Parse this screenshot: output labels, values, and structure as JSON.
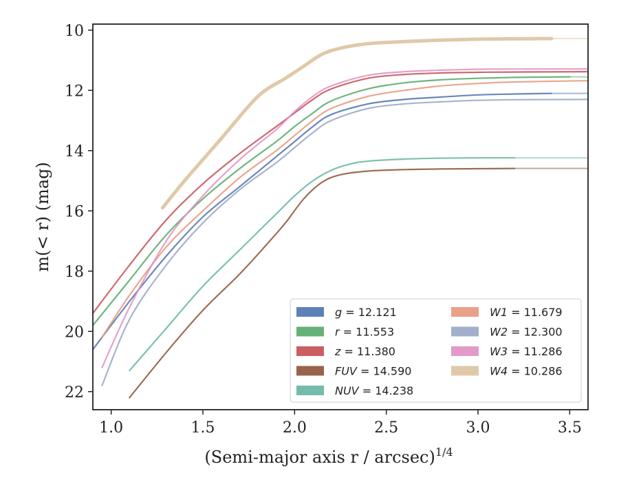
{
  "chart_data": {
    "type": "line",
    "xlabel": "(Semi-major axis r / arcsec)",
    "xlabel_exponent": "1/4",
    "ylabel": "m(< r) (mag)",
    "xlim": [
      0.9,
      3.6
    ],
    "ylim": [
      22.6,
      9.8
    ],
    "y_inverted": true,
    "xticks": [
      1.0,
      1.5,
      2.0,
      2.5,
      3.0,
      3.5
    ],
    "xtick_labels": [
      "1.0",
      "1.5",
      "2.0",
      "2.5",
      "3.0",
      "3.5"
    ],
    "yticks": [
      10,
      12,
      14,
      16,
      18,
      20,
      22
    ],
    "ytick_labels": [
      "10",
      "12",
      "14",
      "16",
      "18",
      "20",
      "22"
    ],
    "grid": false,
    "legend_position": "lower-right",
    "series": [
      {
        "name": "g",
        "label_value": "12.121",
        "color": "#4c72b0",
        "x": [
          0.9,
          1.1,
          1.3,
          1.5,
          1.7,
          1.9,
          2.0,
          2.1,
          2.2,
          2.4,
          2.6,
          2.8,
          3.0,
          3.2,
          3.4
        ],
        "y": [
          20.6,
          19.0,
          17.5,
          16.2,
          15.2,
          14.2,
          13.7,
          13.2,
          12.8,
          12.45,
          12.3,
          12.22,
          12.15,
          12.12,
          12.1
        ],
        "x_ext": [
          3.4,
          3.6
        ],
        "y_ext": [
          12.1,
          12.1
        ]
      },
      {
        "name": "r",
        "label_value": "11.553",
        "color": "#55a868",
        "x": [
          0.9,
          1.1,
          1.3,
          1.5,
          1.7,
          1.9,
          2.0,
          2.1,
          2.2,
          2.4,
          2.6,
          2.8,
          3.0,
          3.2,
          3.5
        ],
        "y": [
          19.8,
          18.3,
          16.8,
          15.6,
          14.6,
          13.7,
          13.2,
          12.75,
          12.35,
          11.95,
          11.75,
          11.65,
          11.6,
          11.57,
          11.55
        ],
        "x_ext": [
          3.5,
          3.6
        ],
        "y_ext": [
          11.55,
          11.55
        ]
      },
      {
        "name": "z",
        "label_value": "11.380",
        "color": "#c44e52",
        "x": [
          0.9,
          1.1,
          1.3,
          1.5,
          1.7,
          1.9,
          2.0,
          2.1,
          2.2,
          2.4,
          2.6,
          2.8,
          3.0,
          3.2,
          3.6
        ],
        "y": [
          19.4,
          17.8,
          16.3,
          15.1,
          14.1,
          13.2,
          12.75,
          12.3,
          11.95,
          11.6,
          11.47,
          11.42,
          11.4,
          11.39,
          11.38
        ],
        "x_ext": [],
        "y_ext": []
      },
      {
        "name": "FUV",
        "label_value": "14.590",
        "color": "#8c5335",
        "x": [
          1.1,
          1.3,
          1.5,
          1.7,
          1.85,
          1.95,
          2.05,
          2.15,
          2.25,
          2.4,
          2.6,
          2.8,
          3.0,
          3.2
        ],
        "y": [
          22.2,
          20.7,
          19.3,
          18.1,
          17.1,
          16.4,
          15.6,
          15.05,
          14.8,
          14.68,
          14.63,
          14.61,
          14.6,
          14.59
        ],
        "x_ext": [
          3.2,
          3.6
        ],
        "y_ext": [
          14.59,
          14.59
        ]
      },
      {
        "name": "NUV",
        "label_value": "14.238",
        "color": "#64b5a0",
        "x": [
          1.1,
          1.3,
          1.5,
          1.7,
          1.9,
          2.0,
          2.1,
          2.2,
          2.3,
          2.4,
          2.6,
          2.8,
          3.0,
          3.2
        ],
        "y": [
          21.3,
          19.9,
          18.5,
          17.3,
          16.1,
          15.5,
          15.0,
          14.65,
          14.45,
          14.35,
          14.28,
          14.25,
          14.24,
          14.24
        ],
        "x_ext": [
          3.2,
          3.6
        ],
        "y_ext": [
          14.24,
          14.24
        ]
      },
      {
        "name": "W1",
        "label_value": "11.679",
        "color": "#e8977a",
        "x": [
          0.95,
          1.1,
          1.3,
          1.5,
          1.7,
          1.9,
          2.0,
          2.1,
          2.2,
          2.4,
          2.6,
          2.8,
          3.0,
          3.2,
          3.6
        ],
        "y": [
          20.2,
          18.8,
          17.2,
          16.0,
          14.9,
          14.0,
          13.5,
          13.0,
          12.6,
          12.2,
          12.0,
          11.85,
          11.77,
          11.72,
          11.68
        ],
        "x_ext": [],
        "y_ext": []
      },
      {
        "name": "W2",
        "label_value": "12.300",
        "color": "#97a6c8",
        "x": [
          0.95,
          1.1,
          1.3,
          1.5,
          1.7,
          1.9,
          2.0,
          2.1,
          2.2,
          2.4,
          2.6,
          2.8,
          3.0,
          3.2,
          3.6
        ],
        "y": [
          21.8,
          19.6,
          17.8,
          16.4,
          15.3,
          14.4,
          13.9,
          13.4,
          13.0,
          12.6,
          12.45,
          12.38,
          12.33,
          12.31,
          12.3
        ],
        "x_ext": [],
        "y_ext": []
      },
      {
        "name": "W3",
        "label_value": "11.286",
        "color": "#e08fc4",
        "x": [
          0.95,
          1.1,
          1.3,
          1.5,
          1.7,
          1.9,
          2.0,
          2.1,
          2.2,
          2.4,
          2.6,
          2.8,
          3.0,
          3.2,
          3.6
        ],
        "y": [
          21.2,
          19.2,
          17.0,
          15.5,
          14.3,
          13.3,
          12.7,
          12.2,
          11.85,
          11.5,
          11.38,
          11.33,
          11.3,
          11.29,
          11.29
        ],
        "x_ext": [],
        "y_ext": []
      },
      {
        "name": "W4",
        "label_value": "10.286",
        "color": "#dcc3a0",
        "x": [
          1.28,
          1.4,
          1.6,
          1.8,
          1.95,
          2.05,
          2.15,
          2.25,
          2.4,
          2.6,
          2.8,
          3.0,
          3.2,
          3.4
        ],
        "y": [
          15.9,
          15.0,
          13.6,
          12.2,
          11.6,
          11.2,
          10.8,
          10.6,
          10.45,
          10.38,
          10.33,
          10.3,
          10.29,
          10.28
        ],
        "x_ext": [
          3.4,
          3.6
        ],
        "y_ext": [
          10.28,
          10.28
        ]
      }
    ]
  }
}
